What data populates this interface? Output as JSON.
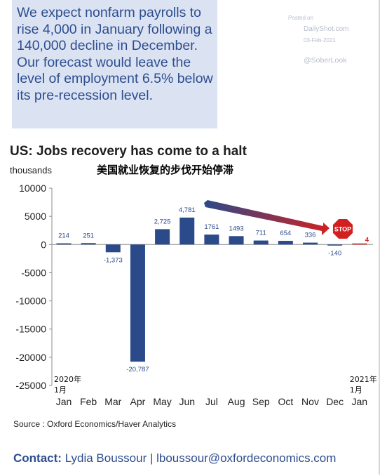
{
  "callout": {
    "text": "We expect nonfarm payrolls to rise 4,000 in January following a 140,000 decline in December. Our forecast would leave the level of employment 6.5% below its pre-recession level."
  },
  "watermark": {
    "posted": "Posted on",
    "site": "DailyShot.com",
    "date": "03-Feb-2021",
    "handle": "@SoberLook"
  },
  "stop_sign": {
    "text": "STOP"
  },
  "footer": {
    "source": "Source : Oxford Economics/Haver Analytics",
    "contact_label": "Contact:",
    "contact_value": "Lydia Boussour | lboussour@oxfordeconomics.com"
  },
  "chart_data": {
    "type": "bar",
    "title": "US: Jobs recovery has come to a halt",
    "subtitle_cn": "美国就业恢复的步伐开始停滞",
    "ylabel": "thousands",
    "ylim": [
      -25000,
      10000
    ],
    "yticks": [
      10000,
      5000,
      0,
      -5000,
      -10000,
      -15000,
      -20000,
      -25000
    ],
    "ytick_labels": [
      "10000",
      "5000",
      "0",
      "-5000",
      "-10000",
      "-15000",
      "-20000",
      "-25000"
    ],
    "categories": [
      "Jan",
      "Feb",
      "Mar",
      "Apr",
      "May",
      "Jun",
      "Jul",
      "Aug",
      "Sep",
      "Oct",
      "Nov",
      "Dec",
      "Jan"
    ],
    "year_labels": [
      {
        "index": 0,
        "year": "2020年",
        "month": "1月"
      },
      {
        "index": 12,
        "year": "2021年",
        "month": "1月"
      }
    ],
    "values": [
      214,
      251,
      -1373,
      -20787,
      2725,
      4781,
      1761,
      1493,
      711,
      654,
      336,
      -140,
      4
    ],
    "data_labels": [
      "214",
      "251",
      "-1,373",
      "-20,787",
      "2,725",
      "4,781",
      "1761",
      "1493",
      "711",
      "654",
      "336",
      "-140",
      "4"
    ],
    "forecast_index": 12,
    "colors": {
      "bar": "#2a4a8a",
      "forecast": "#d22020",
      "arrow_start": "#2a4a8a",
      "arrow_end": "#d22020",
      "stop": "#d22020"
    }
  }
}
